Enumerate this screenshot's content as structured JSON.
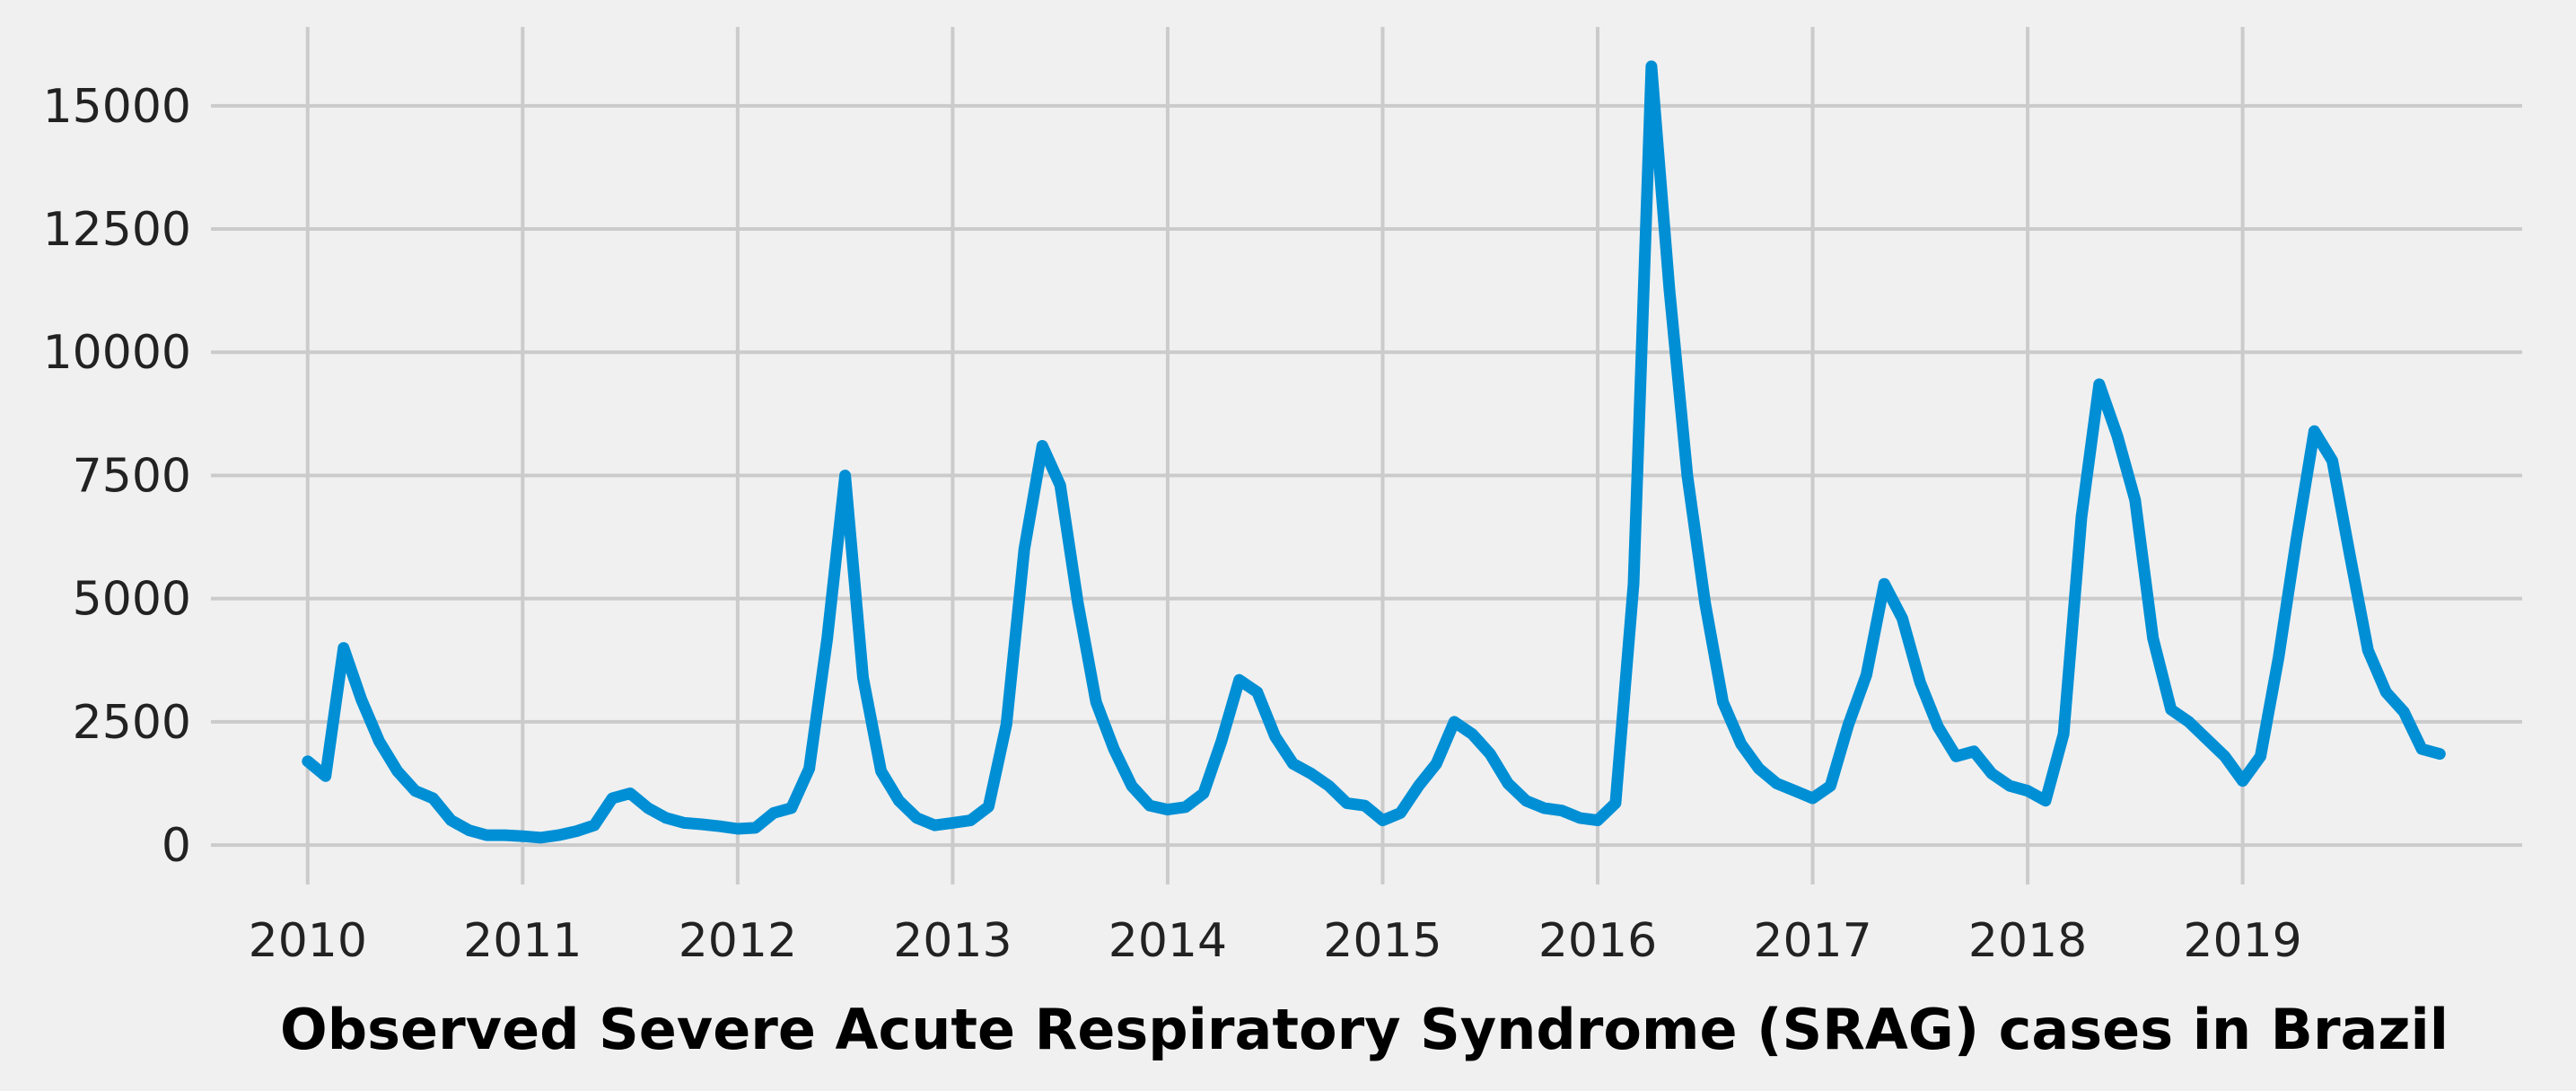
{
  "chart_data": {
    "type": "line",
    "title": "",
    "xlabel": "Observed Severe Acute Respiratory Syndrome (SRAG) cases in Brazil",
    "ylabel": "",
    "x_tick_labels": [
      "2010",
      "2011",
      "2012",
      "2013",
      "2014",
      "2015",
      "2016",
      "2017",
      "2018",
      "2019"
    ],
    "y_tick_labels": [
      "0",
      "2500",
      "5000",
      "7500",
      "10000",
      "12500",
      "15000"
    ],
    "x_ticks": [
      2010,
      2011,
      2012,
      2013,
      2014,
      2015,
      2016,
      2017,
      2018,
      2019
    ],
    "y_ticks": [
      0,
      2500,
      5000,
      7500,
      10000,
      12500,
      15000
    ],
    "xlim": [
      2009.55,
      2020.3
    ],
    "ylim": [
      -800,
      16600
    ],
    "grid": true,
    "colors": {
      "background": "#f0f0f0",
      "grid": "#cbcbcb",
      "line": "#008fd5"
    },
    "series": [
      {
        "x": [
          2010.0,
          2010.083,
          2010.167,
          2010.25,
          2010.333,
          2010.417,
          2010.5,
          2010.583,
          2010.667,
          2010.75,
          2010.833,
          2010.917,
          2011.0,
          2011.083,
          2011.167,
          2011.25,
          2011.333,
          2011.417,
          2011.5,
          2011.583,
          2011.667,
          2011.75,
          2011.833,
          2011.917,
          2012.0,
          2012.083,
          2012.167,
          2012.25,
          2012.333,
          2012.417,
          2012.5,
          2012.583,
          2012.667,
          2012.75,
          2012.833,
          2012.917,
          2013.0,
          2013.083,
          2013.167,
          2013.25,
          2013.333,
          2013.417,
          2013.5,
          2013.583,
          2013.667,
          2013.75,
          2013.833,
          2013.917,
          2014.0,
          2014.083,
          2014.167,
          2014.25,
          2014.333,
          2014.417,
          2014.5,
          2014.583,
          2014.667,
          2014.75,
          2014.833,
          2014.917,
          2015.0,
          2015.083,
          2015.167,
          2015.25,
          2015.333,
          2015.417,
          2015.5,
          2015.583,
          2015.667,
          2015.75,
          2015.833,
          2015.917,
          2016.0,
          2016.083,
          2016.167,
          2016.25,
          2016.333,
          2016.417,
          2016.5,
          2016.583,
          2016.667,
          2016.75,
          2016.833,
          2016.917,
          2017.0,
          2017.083,
          2017.167,
          2017.25,
          2017.333,
          2017.417,
          2017.5,
          2017.583,
          2017.667,
          2017.75,
          2017.833,
          2017.917,
          2018.0,
          2018.083,
          2018.167,
          2018.25,
          2018.333,
          2018.417,
          2018.5,
          2018.583,
          2018.667,
          2018.75,
          2018.833,
          2018.917,
          2019.0,
          2019.083,
          2019.167,
          2019.25,
          2019.333,
          2019.417,
          2019.5,
          2019.583,
          2019.667,
          2019.75,
          2019.833,
          2019.917
        ],
        "y": [
          1700,
          1400,
          4000,
          2950,
          2100,
          1500,
          1100,
          950,
          500,
          300,
          200,
          200,
          180,
          150,
          200,
          280,
          400,
          950,
          1050,
          750,
          550,
          450,
          420,
          380,
          330,
          350,
          650,
          750,
          1550,
          4200,
          7500,
          3400,
          1500,
          900,
          550,
          400,
          450,
          500,
          780,
          2450,
          6000,
          8100,
          7300,
          4900,
          2900,
          1950,
          1200,
          800,
          720,
          770,
          1050,
          2100,
          3350,
          3100,
          2200,
          1650,
          1450,
          1200,
          850,
          800,
          500,
          650,
          1200,
          1650,
          2500,
          2250,
          1850,
          1250,
          900,
          750,
          700,
          550,
          500,
          850,
          5300,
          15800,
          11300,
          7500,
          4900,
          2900,
          2050,
          1550,
          1250,
          1100,
          950,
          1200,
          2450,
          3450,
          5300,
          4600,
          3300,
          2400,
          1800,
          1900,
          1450,
          1200,
          1100,
          900,
          2250,
          6650,
          9350,
          8300,
          7000,
          4200,
          2750,
          2500,
          2150,
          1800,
          1300,
          1800,
          3800,
          6200,
          8400,
          7800,
          5850,
          3950,
          3100,
          2700,
          1950,
          1850
        ]
      }
    ]
  }
}
